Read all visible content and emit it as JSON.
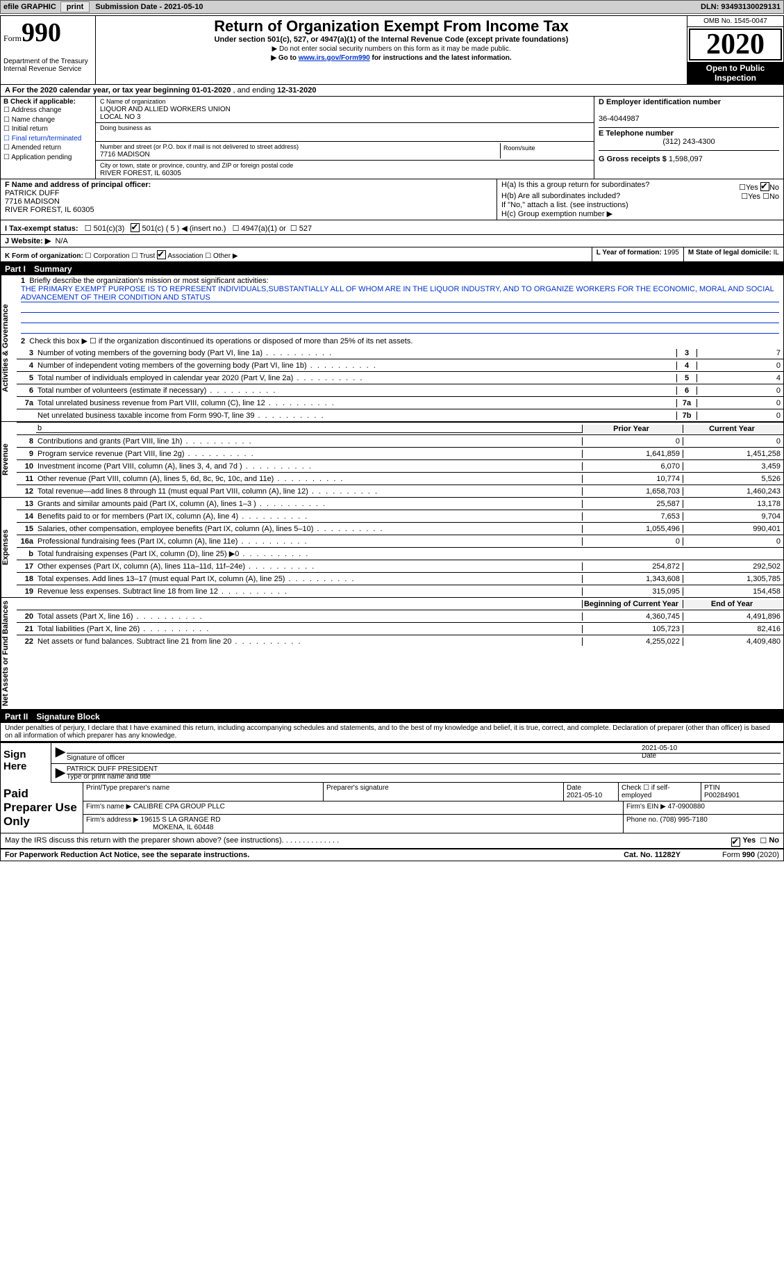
{
  "topbar": {
    "efile_label": "efile GRAPHIC",
    "print_btn": "print",
    "submission_label": "Submission Date - ",
    "submission_date": "2021-05-10",
    "dln_label": "DLN: ",
    "dln": "93493130029131"
  },
  "header": {
    "form_prefix": "Form",
    "form_number": "990",
    "dept": "Department of the Treasury\nInternal Revenue Service",
    "title": "Return of Organization Exempt From Income Tax",
    "subtitle": "Under section 501(c), 527, or 4947(a)(1) of the Internal Revenue Code (except private foundations)",
    "line1": "▶ Do not enter social security numbers on this form as it may be made public.",
    "line2_pre": "▶ Go to ",
    "line2_link": "www.irs.gov/Form990",
    "line2_post": " for instructions and the latest information.",
    "omb": "OMB No. 1545-0047",
    "year": "2020",
    "inspect": "Open to Public Inspection"
  },
  "row_a": {
    "text": "A For the 2020 calendar year, or tax year beginning ",
    "beg": "01-01-2020",
    "mid": " , and ending ",
    "end": "12-31-2020"
  },
  "col_b": {
    "header": "B Check if applicable:",
    "items": [
      "Address change",
      "Name change",
      "Initial return",
      "Final return/terminated",
      "Amended return",
      "Application pending"
    ]
  },
  "col_c": {
    "name_label": "C Name of organization",
    "name1": "LIQUOR AND ALLIED WORKERS UNION",
    "name2": "LOCAL NO 3",
    "dba_label": "Doing business as",
    "addr_label": "Number and street (or P.O. box if mail is not delivered to street address)",
    "room_label": "Room/suite",
    "addr": "7716 MADISON",
    "city_label": "City or town, state or province, country, and ZIP or foreign postal code",
    "city": "RIVER FOREST, IL  60305"
  },
  "col_d": {
    "ein_label": "D Employer identification number",
    "ein": "36-4044987",
    "phone_label": "E Telephone number",
    "phone": "(312) 243-4300",
    "gross_label": "G Gross receipts $ ",
    "gross": "1,598,097"
  },
  "f": {
    "label": "F Name and address of principal officer:",
    "name": "PATRICK DUFF",
    "addr1": "7716 MADISON",
    "addr2": "RIVER FOREST, IL  60305"
  },
  "h": {
    "a_label": "H(a)  Is this a group return for subordinates?",
    "b_label": "H(b)  Are all subordinates included?",
    "b_note": "If \"No,\" attach a list. (see instructions)",
    "c_label": "H(c)  Group exemption number ▶",
    "yes": "Yes",
    "no": "No"
  },
  "i": {
    "label": "I  Tax-exempt status:",
    "o1": "501(c)(3)",
    "o2": "501(c) ( 5 ) ◀ (insert no.)",
    "o3": "4947(a)(1) or",
    "o4": "527"
  },
  "j": {
    "label": "J  Website: ▶",
    "value": "N/A"
  },
  "k": {
    "label": "K Form of organization:",
    "o1": "Corporation",
    "o2": "Trust",
    "o3": "Association",
    "o4": "Other ▶",
    "l_label": "L Year of formation: ",
    "l_val": "1995",
    "m_label": "M State of legal domicile: ",
    "m_val": "IL"
  },
  "part1": {
    "label": "Part I",
    "title": "Summary"
  },
  "mission": {
    "q1_pre": "Briefly describe the organization's mission or most significant activities:",
    "text": "THE PRIMARY EXEMPT PURPOSE IS TO REPRESENT INDIVIDUALS,SUBSTANTIALLY ALL OF WHOM ARE IN THE LIQUOR INDUSTRY, AND TO ORGANIZE WORKERS FOR THE ECONOMIC, MORAL AND SOCIAL ADVANCEMENT OF THEIR CONDITION AND STATUS",
    "q2": "Check this box ▶ ☐  if the organization discontinued its operations or disposed of more than 25% of its net assets."
  },
  "sections": {
    "gov": "Activities & Governance",
    "rev": "Revenue",
    "exp": "Expenses",
    "net": "Net Assets or Fund Balances"
  },
  "gov_rows": [
    {
      "n": "3",
      "t": "Number of voting members of the governing body (Part VI, line 1a)",
      "box": "3",
      "v": "7"
    },
    {
      "n": "4",
      "t": "Number of independent voting members of the governing body (Part VI, line 1b)",
      "box": "4",
      "v": "0"
    },
    {
      "n": "5",
      "t": "Total number of individuals employed in calendar year 2020 (Part V, line 2a)",
      "box": "5",
      "v": "4"
    },
    {
      "n": "6",
      "t": "Total number of volunteers (estimate if necessary)",
      "box": "6",
      "v": "0"
    },
    {
      "n": "7a",
      "t": "Total unrelated business revenue from Part VIII, column (C), line 12",
      "box": "7a",
      "v": "0"
    },
    {
      "n": "",
      "t": "Net unrelated business taxable income from Form 990-T, line 39",
      "box": "7b",
      "v": "0"
    }
  ],
  "py_hdr": "Prior Year",
  "cy_hdr": "Current Year",
  "rev_rows": [
    {
      "n": "8",
      "t": "Contributions and grants (Part VIII, line 1h)",
      "py": "0",
      "cy": "0"
    },
    {
      "n": "9",
      "t": "Program service revenue (Part VIII, line 2g)",
      "py": "1,641,859",
      "cy": "1,451,258"
    },
    {
      "n": "10",
      "t": "Investment income (Part VIII, column (A), lines 3, 4, and 7d )",
      "py": "6,070",
      "cy": "3,459"
    },
    {
      "n": "11",
      "t": "Other revenue (Part VIII, column (A), lines 5, 6d, 8c, 9c, 10c, and 11e)",
      "py": "10,774",
      "cy": "5,526"
    },
    {
      "n": "12",
      "t": "Total revenue—add lines 8 through 11 (must equal Part VIII, column (A), line 12)",
      "py": "1,658,703",
      "cy": "1,460,243"
    }
  ],
  "exp_rows": [
    {
      "n": "13",
      "t": "Grants and similar amounts paid (Part IX, column (A), lines 1–3 )",
      "py": "25,587",
      "cy": "13,178"
    },
    {
      "n": "14",
      "t": "Benefits paid to or for members (Part IX, column (A), line 4)",
      "py": "7,653",
      "cy": "9,704"
    },
    {
      "n": "15",
      "t": "Salaries, other compensation, employee benefits (Part IX, column (A), lines 5–10)",
      "py": "1,055,496",
      "cy": "990,401"
    },
    {
      "n": "16a",
      "t": "Professional fundraising fees (Part IX, column (A), line 11e)",
      "py": "0",
      "cy": "0"
    },
    {
      "n": "b",
      "t": "Total fundraising expenses (Part IX, column (D), line 25) ▶0",
      "py": "",
      "cy": "",
      "shade": true
    },
    {
      "n": "17",
      "t": "Other expenses (Part IX, column (A), lines 11a–11d, 11f–24e)",
      "py": "254,872",
      "cy": "292,502"
    },
    {
      "n": "18",
      "t": "Total expenses. Add lines 13–17 (must equal Part IX, column (A), line 25)",
      "py": "1,343,608",
      "cy": "1,305,785"
    },
    {
      "n": "19",
      "t": "Revenue less expenses. Subtract line 18 from line 12",
      "py": "315,095",
      "cy": "154,458"
    }
  ],
  "net_hdr_py": "Beginning of Current Year",
  "net_hdr_cy": "End of Year",
  "net_rows": [
    {
      "n": "20",
      "t": "Total assets (Part X, line 16)",
      "py": "4,360,745",
      "cy": "4,491,896"
    },
    {
      "n": "21",
      "t": "Total liabilities (Part X, line 26)",
      "py": "105,723",
      "cy": "82,416"
    },
    {
      "n": "22",
      "t": "Net assets or fund balances. Subtract line 21 from line 20",
      "py": "4,255,022",
      "cy": "4,409,480"
    }
  ],
  "part2": {
    "label": "Part II",
    "title": "Signature Block"
  },
  "penalties": "Under penalties of perjury, I declare that I have examined this return, including accompanying schedules and statements, and to the best of my knowledge and belief, it is true, correct, and complete. Declaration of preparer (other than officer) is based on all information of which preparer has any knowledge.",
  "sign": {
    "here": "Sign Here",
    "sig_label": "Signature of officer",
    "date_label": "Date",
    "date": "2021-05-10",
    "name": "PATRICK DUFF PRESIDENT",
    "name_label": "Type or print name and title"
  },
  "prep": {
    "here": "Paid Preparer Use Only",
    "h1": "Print/Type preparer's name",
    "h2": "Preparer's signature",
    "h3": "Date",
    "date": "2021-05-10",
    "h4": "Check ☐ if self-employed",
    "h5": "PTIN",
    "ptin": "P00284901",
    "firm_label": "Firm's name    ▶ ",
    "firm": "CALIBRE CPA GROUP PLLC",
    "ein_label": "Firm's EIN ▶ ",
    "ein": "47-0900880",
    "addr_label": "Firm's address ▶ ",
    "addr1": "19615 S LA GRANGE RD",
    "addr2": "MOKENA, IL  60448",
    "phone_label": "Phone no. ",
    "phone": "(708) 995-7180"
  },
  "discuss": {
    "q": "May the IRS discuss this return with the preparer shown above? (see instructions)",
    "yes": "Yes",
    "no": "No"
  },
  "footer": {
    "left": "For Paperwork Reduction Act Notice, see the separate instructions.",
    "mid": "Cat. No. 11282Y",
    "right": "Form 990 (2020)"
  }
}
